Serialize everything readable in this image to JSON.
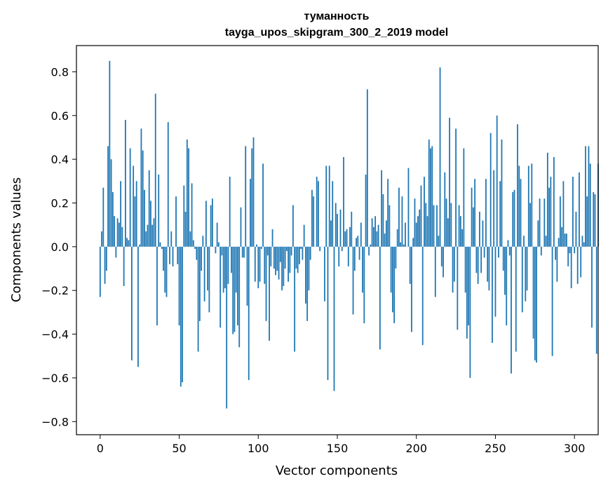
{
  "chart_data": {
    "type": "bar",
    "title": "туманность",
    "subtitle": "tayga_upos_skipgram_300_2_2019 model",
    "xlabel": "Vector components",
    "ylabel": "Components values",
    "xlim": [
      -15,
      315
    ],
    "ylim": [
      -0.86,
      0.92
    ],
    "xticks": [
      0,
      50,
      100,
      150,
      200,
      250,
      300
    ],
    "yticks": [
      -0.8,
      -0.6,
      -0.4,
      -0.2,
      0.0,
      0.2,
      0.4,
      0.6,
      0.8
    ],
    "ytick_labels": [
      "−0.8",
      "−0.6",
      "−0.4",
      "−0.2",
      "0.0",
      "0.2",
      "0.4",
      "0.6",
      "0.8"
    ],
    "grid": false,
    "bar_color": "#1f77b4",
    "x_start": 0,
    "values": [
      -0.23,
      0.07,
      0.27,
      -0.17,
      -0.11,
      0.46,
      0.85,
      0.4,
      0.25,
      0.14,
      -0.05,
      0.13,
      0.11,
      0.3,
      0.09,
      -0.18,
      0.58,
      0.04,
      0.03,
      0.45,
      -0.52,
      0.37,
      0.23,
      0.3,
      -0.55,
      0.01,
      0.54,
      0.44,
      0.26,
      0.07,
      0.1,
      0.35,
      0.21,
      0.1,
      0.13,
      0.7,
      -0.36,
      0.33,
      0.02,
      -0.01,
      -0.11,
      -0.21,
      -0.23,
      0.57,
      -0.08,
      0.07,
      -0.09,
      0.0,
      0.23,
      -0.08,
      -0.36,
      -0.64,
      -0.62,
      0.28,
      0.16,
      0.49,
      0.45,
      0.07,
      0.29,
      0.03,
      -0.01,
      -0.06,
      -0.48,
      -0.34,
      -0.11,
      0.05,
      -0.25,
      0.21,
      -0.2,
      -0.3,
      0.19,
      0.22,
      0.0,
      -0.03,
      0.11,
      0.02,
      -0.37,
      -0.04,
      -0.21,
      -0.19,
      -0.74,
      -0.17,
      0.32,
      -0.12,
      -0.4,
      -0.39,
      -0.21,
      -0.36,
      -0.46,
      0.18,
      -0.05,
      -0.05,
      0.46,
      -0.27,
      -0.61,
      0.31,
      0.45,
      0.5,
      -0.16,
      0.01,
      -0.19,
      -0.16,
      -0.01,
      0.38,
      -0.17,
      -0.34,
      -0.04,
      -0.43,
      -0.09,
      0.08,
      -0.1,
      -0.13,
      -0.11,
      -0.15,
      -0.07,
      -0.2,
      -0.18,
      -0.1,
      -0.02,
      -0.16,
      -0.12,
      -0.04,
      0.19,
      -0.48,
      -0.1,
      -0.12,
      -0.08,
      -0.01,
      -0.06,
      0.1,
      -0.26,
      -0.34,
      -0.2,
      -0.06,
      0.26,
      0.23,
      0.0,
      0.32,
      0.3,
      -0.02,
      0.0,
      0.0,
      -0.25,
      0.37,
      -0.61,
      0.37,
      0.12,
      0.3,
      -0.66,
      0.2,
      0.15,
      -0.09,
      0.17,
      -0.02,
      0.41,
      0.07,
      0.08,
      -0.09,
      0.09,
      0.16,
      -0.31,
      -0.11,
      0.04,
      0.05,
      -0.06,
      0.11,
      -0.21,
      -0.35,
      0.33,
      0.72,
      -0.04,
      0.01,
      0.13,
      0.09,
      0.14,
      0.07,
      0.1,
      -0.47,
      0.35,
      0.24,
      0.06,
      0.12,
      0.31,
      0.19,
      -0.21,
      -0.3,
      -0.35,
      -0.1,
      0.08,
      0.27,
      0.02,
      0.23,
      0.01,
      0.11,
      0.0,
      0.36,
      -0.17,
      -0.39,
      0.04,
      0.22,
      0.11,
      0.14,
      0.17,
      0.28,
      -0.45,
      0.32,
      0.2,
      0.14,
      0.49,
      0.45,
      0.46,
      0.19,
      -0.23,
      0.19,
      0.05,
      0.82,
      -0.09,
      -0.14,
      0.34,
      0.22,
      0.13,
      0.59,
      0.2,
      -0.21,
      -0.16,
      0.54,
      -0.38,
      0.19,
      0.14,
      0.08,
      0.45,
      -0.21,
      -0.42,
      -0.36,
      -0.6,
      0.27,
      0.18,
      0.31,
      -0.12,
      -0.17,
      0.16,
      -0.12,
      0.12,
      -0.05,
      0.31,
      -0.16,
      -0.2,
      0.52,
      -0.44,
      0.35,
      -0.32,
      0.6,
      -0.05,
      0.3,
      0.49,
      -0.11,
      -0.22,
      -0.36,
      0.03,
      -0.04,
      -0.58,
      0.25,
      0.26,
      -0.48,
      0.56,
      0.37,
      0.31,
      -0.3,
      0.05,
      -0.25,
      -0.2,
      0.37,
      0.2,
      0.38,
      -0.42,
      -0.52,
      -0.53,
      0.12,
      0.22,
      -0.04,
      0.0,
      0.22,
      0.05,
      0.43,
      0.27,
      0.32,
      -0.5,
      0.41,
      -0.06,
      -0.16,
      0.04,
      0.23,
      0.09,
      0.3,
      0.06,
      0.06,
      -0.09,
      -0.03,
      -0.19,
      0.32,
      -0.03,
      0.16,
      -0.17,
      0.34,
      -0.14,
      0.05,
      0.02,
      0.46,
      0.23,
      0.46,
      0.38,
      -0.37,
      0.25,
      0.24,
      -0.49,
      0.38
    ]
  }
}
